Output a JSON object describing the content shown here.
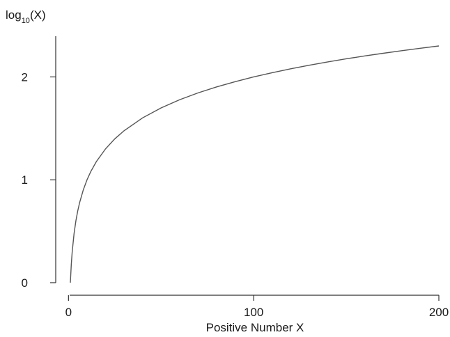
{
  "chart_data": {
    "type": "line",
    "ylabel_main": "log",
    "ylabel_sub": "10",
    "ylabel_tail": "(X)",
    "xlabel": "Positive Number X",
    "xlim": [
      1,
      200
    ],
    "ylim": [
      0,
      2.30103
    ],
    "x_ticks": [
      0,
      100,
      200
    ],
    "y_ticks": [
      0,
      1,
      2
    ],
    "x_tick_labels": [
      "0",
      "100",
      "200"
    ],
    "y_tick_labels": [
      "0",
      "1",
      "2"
    ],
    "series": [
      {
        "x": [
          1,
          1.5,
          2,
          3,
          4,
          5,
          6,
          8,
          10,
          12,
          15,
          20,
          25,
          30,
          40,
          50,
          60,
          70,
          80,
          90,
          100,
          110,
          120,
          130,
          140,
          150,
          160,
          170,
          180,
          190,
          200
        ],
        "y": [
          0,
          0.176,
          0.301,
          0.477,
          0.602,
          0.699,
          0.778,
          0.903,
          1.0,
          1.079,
          1.176,
          1.301,
          1.398,
          1.477,
          1.602,
          1.699,
          1.778,
          1.845,
          1.903,
          1.954,
          2.0,
          2.041,
          2.079,
          2.114,
          2.146,
          2.176,
          2.204,
          2.23,
          2.255,
          2.279,
          2.301
        ]
      }
    ],
    "grid": false,
    "colors": {
      "line": "#555555",
      "axis": "#333333",
      "text": "#1a1a1a"
    }
  }
}
